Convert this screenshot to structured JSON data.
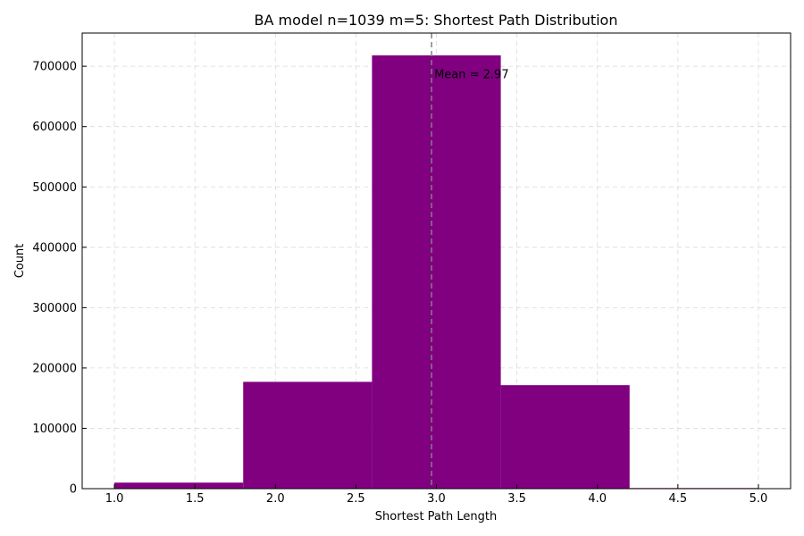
{
  "chart_data": {
    "type": "bar",
    "title": "BA model n=1039 m=5: Shortest Path Distribution",
    "xlabel": "Shortest Path Length",
    "ylabel": "Count",
    "bins": [
      {
        "x0": 1.0,
        "x1": 1.8,
        "value": 10000
      },
      {
        "x0": 1.8,
        "x1": 2.6,
        "value": 177000
      },
      {
        "x0": 2.6,
        "x1": 3.4,
        "value": 718000
      },
      {
        "x0": 3.4,
        "x1": 4.2,
        "value": 171500
      },
      {
        "x0": 4.2,
        "x1": 5.0,
        "value": 1000
      }
    ],
    "bar_color": "#800080",
    "mean_line": {
      "value": 2.97,
      "label": "Mean = 2.97",
      "color": "#808080"
    },
    "xlim": [
      0.8,
      5.2
    ],
    "ylim": [
      0,
      755000
    ],
    "xticks": [
      1.0,
      1.5,
      2.0,
      2.5,
      3.0,
      3.5,
      4.0,
      4.5,
      5.0
    ],
    "xtick_labels": [
      "1.0",
      "1.5",
      "2.0",
      "2.5",
      "3.0",
      "3.5",
      "4.0",
      "4.5",
      "5.0"
    ],
    "yticks": [
      0,
      100000,
      200000,
      300000,
      400000,
      500000,
      600000,
      700000
    ],
    "ytick_labels": [
      "0",
      "100000",
      "200000",
      "300000",
      "400000",
      "500000",
      "600000",
      "700000"
    ],
    "grid": true
  }
}
